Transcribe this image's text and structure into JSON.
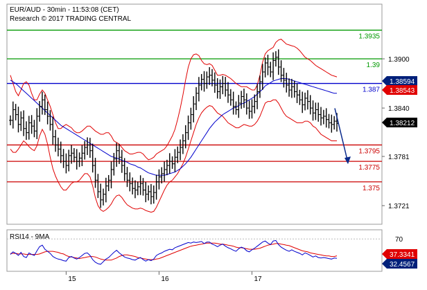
{
  "header": {
    "symbol_line": "EUR/AUD - 30min - 11:53:08 (CET)",
    "research_line": "Research © 2017 TRADING CENTRAL"
  },
  "colors": {
    "bar": "#000000",
    "bollinger": "#e00000",
    "moving_average": "#0000cc",
    "resistance_top": "#009900",
    "pivot": "#0000cc",
    "support": "#cc0000",
    "arrow": "#0a2a8c",
    "rsi": "#0000cc",
    "rsi_ma": "#e00000",
    "price_tag_last": "#000000",
    "price_tag_red": "#e00000",
    "price_tag_blue": "#00207a"
  },
  "chart_data": [
    {
      "type": "ohlc",
      "name": "price",
      "title": "EUR/AUD - 30min - 11:53:08 (CET)",
      "y_ticks": [
        "1.3900",
        "1.3840",
        "1.3781",
        "1.3721"
      ],
      "y_tick_values": [
        1.39,
        1.384,
        1.3781,
        1.3721
      ],
      "ylim": [
        1.37,
        1.3965
      ],
      "x_ticks": [
        "15",
        "16",
        "17"
      ],
      "x_tick_index": [
        21,
        56,
        91
      ],
      "n_bars": 124,
      "levels": [
        {
          "label": "1.3935",
          "value": 1.3935,
          "role": "resistance_top"
        },
        {
          "label": "1.39",
          "value": 1.39,
          "role": "resistance_top"
        },
        {
          "label": "1.387",
          "value": 1.387,
          "role": "pivot"
        },
        {
          "label": "1.3795",
          "value": 1.3795,
          "role": "support"
        },
        {
          "label": "1.3775",
          "value": 1.3775,
          "role": "support"
        },
        {
          "label": "1.375",
          "value": 1.375,
          "role": "support"
        }
      ],
      "price_tags": [
        {
          "label": "1.38594",
          "value": 1.38594,
          "style": "price_tag_blue"
        },
        {
          "label": "1.38543",
          "value": 1.38543,
          "style": "price_tag_red"
        },
        {
          "label": "1.38212",
          "value": 1.38212,
          "style": "price_tag_last"
        }
      ],
      "close": [
        1.3825,
        1.3838,
        1.3832,
        1.382,
        1.3828,
        1.3815,
        1.381,
        1.3822,
        1.3818,
        1.3812,
        1.383,
        1.3842,
        1.385,
        1.3838,
        1.383,
        1.382,
        1.3805,
        1.3795,
        1.379,
        1.3782,
        1.3775,
        1.377,
        1.3782,
        1.3785,
        1.378,
        1.3775,
        1.3779,
        1.3785,
        1.3792,
        1.3795,
        1.3788,
        1.377,
        1.3752,
        1.3738,
        1.3728,
        1.3735,
        1.3745,
        1.3752,
        1.3765,
        1.3778,
        1.3788,
        1.378,
        1.377,
        1.376,
        1.3752,
        1.3748,
        1.3742,
        1.374,
        1.3744,
        1.3748,
        1.374,
        1.3735,
        1.3738,
        1.3732,
        1.3737,
        1.375,
        1.3756,
        1.376,
        1.3765,
        1.377,
        1.3775,
        1.3772,
        1.378,
        1.3786,
        1.3792,
        1.38,
        1.381,
        1.3822,
        1.3832,
        1.3845,
        1.3858,
        1.3868,
        1.3875,
        1.387,
        1.3878,
        1.388,
        1.3874,
        1.3868,
        1.386,
        1.3866,
        1.387,
        1.3862,
        1.3856,
        1.385,
        1.3842,
        1.3838,
        1.3846,
        1.3854,
        1.385,
        1.384,
        1.3836,
        1.3842,
        1.3848,
        1.386,
        1.3872,
        1.3884,
        1.3895,
        1.389,
        1.3884,
        1.3898,
        1.3902,
        1.389,
        1.388,
        1.3874,
        1.3868,
        1.3862,
        1.3866,
        1.386,
        1.3856,
        1.385,
        1.3844,
        1.3852,
        1.3848,
        1.384,
        1.3834,
        1.3838,
        1.3832,
        1.3828,
        1.383,
        1.3826,
        1.3822,
        1.382,
        1.3824,
        1.38212
      ],
      "bollinger_upper": [
        1.388,
        1.387,
        1.386,
        1.3855,
        1.3862,
        1.387,
        1.3872,
        1.3868,
        1.3858,
        1.385,
        1.385,
        1.3857,
        1.3862,
        1.3858,
        1.385,
        1.3842,
        1.3832,
        1.3822,
        1.3815,
        1.3815,
        1.3818,
        1.382,
        1.3818,
        1.3816,
        1.3812,
        1.381,
        1.381,
        1.3812,
        1.3815,
        1.3818,
        1.3818,
        1.3815,
        1.3812,
        1.381,
        1.3808,
        1.3808,
        1.381,
        1.381,
        1.3806,
        1.38,
        1.3798,
        1.3796,
        1.3792,
        1.3788,
        1.3786,
        1.3784,
        1.3784,
        1.3785,
        1.3786,
        1.3786,
        1.3784,
        1.378,
        1.3777,
        1.3778,
        1.378,
        1.3784,
        1.3786,
        1.3788,
        1.379,
        1.3794,
        1.38,
        1.3806,
        1.3814,
        1.3826,
        1.384,
        1.3856,
        1.3874,
        1.389,
        1.39,
        1.3905,
        1.3906,
        1.3904,
        1.3898,
        1.3894,
        1.3893,
        1.3894,
        1.3892,
        1.3886,
        1.388,
        1.388,
        1.3881,
        1.388,
        1.3878,
        1.3876,
        1.3873,
        1.387,
        1.3868,
        1.3866,
        1.3866,
        1.3866,
        1.3864,
        1.3862,
        1.3862,
        1.3868,
        1.388,
        1.3896,
        1.3906,
        1.391,
        1.3912,
        1.3914,
        1.392,
        1.3923,
        1.3924,
        1.3921,
        1.3918,
        1.3917,
        1.3916,
        1.3915,
        1.3913,
        1.391,
        1.3906,
        1.3902,
        1.39,
        1.3898,
        1.3895,
        1.3892,
        1.389,
        1.3888,
        1.3886,
        1.3884,
        1.3882,
        1.388,
        1.3879,
        1.3878
      ],
      "bollinger_lower": [
        1.379,
        1.3786,
        1.3786,
        1.379,
        1.3795,
        1.38,
        1.3797,
        1.3793,
        1.379,
        1.3788,
        1.3794,
        1.3806,
        1.3814,
        1.3808,
        1.3796,
        1.378,
        1.3766,
        1.3757,
        1.375,
        1.3744,
        1.374,
        1.374,
        1.3744,
        1.3748,
        1.375,
        1.375,
        1.3752,
        1.3756,
        1.376,
        1.376,
        1.3756,
        1.3745,
        1.3731,
        1.3721,
        1.3716,
        1.3714,
        1.3716,
        1.3719,
        1.3723,
        1.3729,
        1.3733,
        1.3734,
        1.3731,
        1.3726,
        1.3722,
        1.372,
        1.3718,
        1.3717,
        1.3717,
        1.3718,
        1.3717,
        1.3715,
        1.3714,
        1.3713,
        1.3714,
        1.3719,
        1.3726,
        1.3733,
        1.374,
        1.3746,
        1.375,
        1.3752,
        1.3756,
        1.376,
        1.3766,
        1.3772,
        1.378,
        1.379,
        1.38,
        1.381,
        1.382,
        1.3828,
        1.3834,
        1.3838,
        1.3841,
        1.3843,
        1.3842,
        1.3838,
        1.3834,
        1.3832,
        1.383,
        1.3826,
        1.3822,
        1.382,
        1.3818,
        1.3816,
        1.3816,
        1.3818,
        1.382,
        1.3819,
        1.3818,
        1.3818,
        1.382,
        1.3824,
        1.383,
        1.3838,
        1.3846,
        1.3848,
        1.3848,
        1.385,
        1.385,
        1.3846,
        1.384,
        1.3834,
        1.383,
        1.3828,
        1.3826,
        1.3824,
        1.3822,
        1.3822,
        1.3822,
        1.3824,
        1.3824,
        1.3822,
        1.3818,
        1.3816,
        1.3812,
        1.3808,
        1.3806,
        1.3804,
        1.3802,
        1.38,
        1.38,
        1.38
      ],
      "moving_average": [
        1.3874,
        1.3872,
        1.387,
        1.3867,
        1.3864,
        1.3861,
        1.3858,
        1.3855,
        1.3852,
        1.3849,
        1.3846,
        1.3843,
        1.384,
        1.3837,
        1.3834,
        1.3831,
        1.3828,
        1.3825,
        1.3822,
        1.3819,
        1.3817,
        1.3815,
        1.3813,
        1.3811,
        1.3809,
        1.3807,
        1.3805,
        1.3803,
        1.3801,
        1.3799,
        1.3797,
        1.3795,
        1.3793,
        1.3791,
        1.3789,
        1.3787,
        1.3785,
        1.3783,
        1.3781,
        1.378,
        1.3779,
        1.3778,
        1.3776,
        1.3775,
        1.3774,
        1.3772,
        1.3771,
        1.377,
        1.3768,
        1.3767,
        1.3765,
        1.3763,
        1.3761,
        1.376,
        1.3759,
        1.3758,
        1.3758,
        1.3758,
        1.3758,
        1.3759,
        1.376,
        1.3761,
        1.3762,
        1.3764,
        1.3766,
        1.3769,
        1.3772,
        1.3776,
        1.378,
        1.3785,
        1.379,
        1.3795,
        1.38,
        1.3805,
        1.381,
        1.3815,
        1.3819,
        1.3823,
        1.3826,
        1.3829,
        1.3832,
        1.3834,
        1.3836,
        1.3838,
        1.384,
        1.3841,
        1.3843,
        1.3845,
        1.3846,
        1.3848,
        1.385,
        1.3852,
        1.3854,
        1.3857,
        1.386,
        1.3863,
        1.3867,
        1.3869,
        1.3871,
        1.3873,
        1.3874,
        1.3875,
        1.3876,
        1.3876,
        1.3876,
        1.3875,
        1.3874,
        1.3873,
        1.3872,
        1.3871,
        1.387,
        1.3869,
        1.3868,
        1.3867,
        1.3866,
        1.3865,
        1.3864,
        1.3863,
        1.3862,
        1.3861,
        1.386,
        1.3859,
        1.3858,
        1.3858
      ]
    },
    {
      "type": "line",
      "name": "oscillator",
      "title": "RSI14 - 9MA",
      "y_ticks": [
        "70"
      ],
      "y_tick_values": [
        70
      ],
      "ylim": [
        10,
        85
      ],
      "series": [
        {
          "name": "RSI14",
          "style": "rsi"
        },
        {
          "name": "9MA",
          "style": "rsi_ma"
        }
      ],
      "rsi": [
        40,
        45,
        42,
        38,
        44,
        36,
        34,
        43,
        40,
        38,
        47,
        55,
        58,
        50,
        46,
        42,
        36,
        33,
        31,
        30,
        28,
        27,
        34,
        36,
        33,
        31,
        34,
        38,
        42,
        43,
        38,
        30,
        25,
        22,
        21,
        26,
        31,
        34,
        39,
        44,
        48,
        43,
        39,
        35,
        33,
        32,
        30,
        29,
        32,
        34,
        30,
        27,
        30,
        28,
        31,
        38,
        41,
        43,
        46,
        48,
        50,
        49,
        53,
        55,
        57,
        59,
        61,
        63,
        62,
        64,
        63,
        64,
        65,
        61,
        64,
        64,
        60,
        58,
        55,
        58,
        60,
        56,
        53,
        51,
        48,
        46,
        51,
        54,
        52,
        47,
        45,
        49,
        52,
        56,
        60,
        64,
        66,
        62,
        59,
        66,
        67,
        59,
        54,
        51,
        48,
        46,
        49,
        46,
        44,
        42,
        39,
        43,
        41,
        38,
        35,
        37,
        34,
        33,
        34,
        33,
        32,
        31,
        33,
        32.4567
      ],
      "ma": [
        42,
        42,
        42,
        41,
        41,
        41,
        40,
        40,
        40,
        40,
        40,
        41,
        43,
        45,
        46,
        46,
        46,
        45,
        44,
        42,
        41,
        38,
        36,
        35,
        34,
        33,
        32,
        33,
        34,
        35,
        36,
        36,
        35,
        33,
        31,
        30,
        29,
        29,
        29,
        31,
        33,
        36,
        38,
        39,
        39,
        38,
        37,
        36,
        34,
        33,
        32,
        31,
        30,
        30,
        30,
        31,
        32,
        34,
        36,
        38,
        40,
        42,
        44,
        46,
        48,
        50,
        52,
        54,
        56,
        57,
        58,
        59,
        60,
        61,
        62,
        62,
        62,
        62,
        61,
        60,
        60,
        59,
        58,
        57,
        56,
        54,
        53,
        53,
        52,
        51,
        50,
        50,
        50,
        51,
        52,
        54,
        56,
        58,
        59,
        60,
        61,
        61,
        60,
        59,
        58,
        57,
        55,
        53,
        51,
        49,
        47,
        46,
        45,
        43,
        42,
        41,
        40,
        39,
        38,
        37,
        37,
        36,
        36,
        37.3341
      ],
      "value_tags": [
        {
          "label": "37.3341",
          "style": "price_tag_red"
        },
        {
          "label": "32.4567",
          "style": "price_tag_blue"
        }
      ]
    }
  ]
}
